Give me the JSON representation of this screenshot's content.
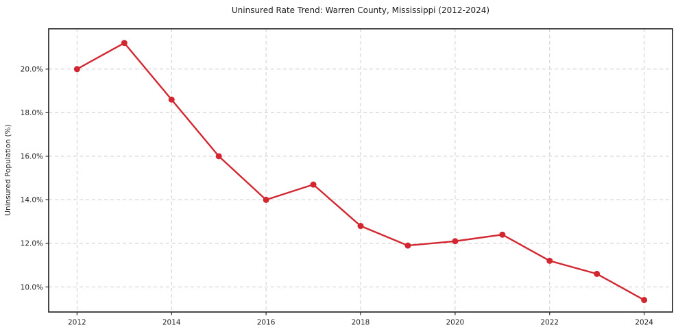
{
  "chart_data": {
    "type": "line",
    "title": "Uninsured Rate Trend: Warren County, Mississippi (2012-2024)",
    "xlabel": "",
    "ylabel": "Uninsured Population (%)",
    "x": [
      2012,
      2013,
      2014,
      2015,
      2016,
      2017,
      2018,
      2019,
      2020,
      2021,
      2022,
      2023,
      2024
    ],
    "values": [
      20.0,
      21.2,
      18.6,
      16.0,
      14.0,
      14.7,
      12.8,
      11.9,
      12.1,
      12.4,
      11.2,
      10.6,
      9.4
    ],
    "unit": "%",
    "x_ticks": [
      2012,
      2014,
      2016,
      2018,
      2020,
      2022,
      2024
    ],
    "x_tick_labels": [
      "2012",
      "2014",
      "2016",
      "2018",
      "2020",
      "2022",
      "2024"
    ],
    "y_ticks": [
      10,
      12,
      14,
      16,
      18,
      20
    ],
    "y_tick_labels": [
      "10.0%",
      "12.0%",
      "14.0%",
      "16.0%",
      "18.0%",
      "20.0%"
    ],
    "xlim": [
      2011.4,
      2024.6
    ],
    "ylim": [
      8.85,
      21.85
    ],
    "grid": true,
    "grid_style": "dashed",
    "legend": "none",
    "marker": "circle",
    "marker_diameter": 9,
    "line_width": 2.4,
    "colors": {
      "line": "#d22730",
      "grid": "#cccccc",
      "spine": "#1a1a1a",
      "tick_text": "#262626",
      "title_text": "#1a1a1a",
      "background": "#ffffff"
    }
  }
}
